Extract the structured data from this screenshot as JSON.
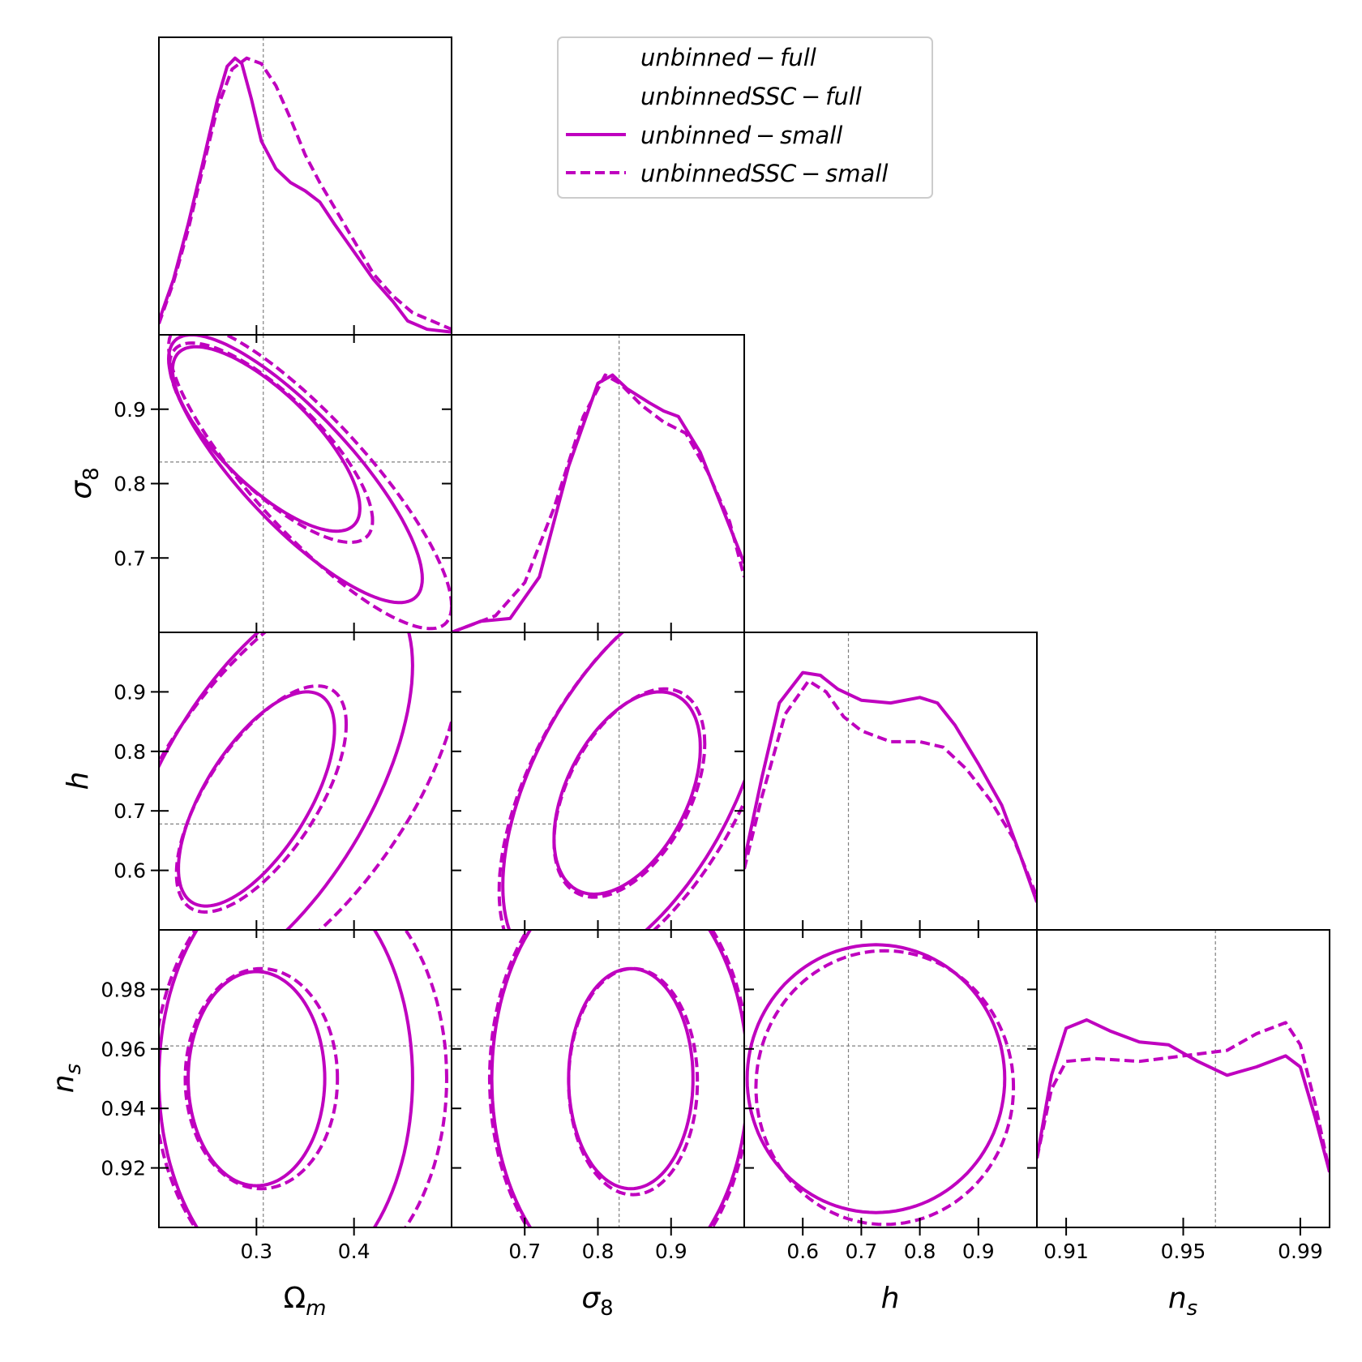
{
  "chart_data": {
    "type": "corner",
    "parameters": [
      {
        "name": "Omega_m",
        "range": [
          0.2,
          0.5
        ],
        "ticks": [
          0.3,
          0.4
        ],
        "tick_labels": [
          "0.3",
          "0.4"
        ],
        "fiducial": 0.307
      },
      {
        "name": "sigma_8",
        "range": [
          0.6,
          1.0
        ],
        "ticks": [
          0.7,
          0.8,
          0.9
        ],
        "tick_labels": [
          "0.7",
          "0.8",
          "0.9"
        ],
        "fiducial": 0.829
      },
      {
        "name": "h",
        "range": [
          0.5,
          1.0
        ],
        "ticks": [
          0.6,
          0.7,
          0.8,
          0.9
        ],
        "tick_labels": [
          "0.6",
          "0.7",
          "0.8",
          "0.9"
        ],
        "fiducial": 0.678
      },
      {
        "name": "n_s",
        "range": [
          0.9,
          1.0
        ],
        "ticks": [
          0.92,
          0.94,
          0.96,
          0.98
        ],
        "tick_labels": [
          "0.92",
          "0.94",
          "0.96",
          "0.98"
        ],
        "x_ticks": [
          0.91,
          0.95,
          0.99
        ],
        "x_tick_labels": [
          "0.91",
          "0.95",
          "0.99"
        ],
        "fiducial": 0.961
      }
    ],
    "legend": {
      "placement": "top-center",
      "entries": [
        {
          "label": "unbinned − full",
          "style": "none"
        },
        {
          "label": "unbinnedSSC − full",
          "style": "none"
        },
        {
          "label": "unbinned − small",
          "style": "solid"
        },
        {
          "label": "unbinnedSSC − small",
          "style": "dashed"
        }
      ]
    },
    "series": [
      {
        "name": "unbinned − small",
        "style": "solid",
        "color": "#bf00bf"
      },
      {
        "name": "unbinnedSSC − small",
        "style": "dashed",
        "color": "#bf00bf"
      }
    ],
    "marginals": [
      {
        "param": "Omega_m",
        "solid": [
          [
            0.2,
            0.05
          ],
          [
            0.215,
            0.2
          ],
          [
            0.23,
            0.4
          ],
          [
            0.245,
            0.62
          ],
          [
            0.26,
            0.85
          ],
          [
            0.27,
            0.97
          ],
          [
            0.278,
            1.0
          ],
          [
            0.285,
            0.98
          ],
          [
            0.295,
            0.85
          ],
          [
            0.305,
            0.7
          ],
          [
            0.32,
            0.6
          ],
          [
            0.335,
            0.55
          ],
          [
            0.35,
            0.52
          ],
          [
            0.365,
            0.48
          ],
          [
            0.38,
            0.4
          ],
          [
            0.4,
            0.3
          ],
          [
            0.42,
            0.2
          ],
          [
            0.44,
            0.12
          ],
          [
            0.455,
            0.05
          ],
          [
            0.475,
            0.02
          ],
          [
            0.5,
            0.01
          ]
        ],
        "dashed": [
          [
            0.2,
            0.04
          ],
          [
            0.215,
            0.19
          ],
          [
            0.23,
            0.38
          ],
          [
            0.245,
            0.6
          ],
          [
            0.26,
            0.82
          ],
          [
            0.275,
            0.96
          ],
          [
            0.29,
            1.0
          ],
          [
            0.305,
            0.98
          ],
          [
            0.32,
            0.9
          ],
          [
            0.335,
            0.78
          ],
          [
            0.35,
            0.65
          ],
          [
            0.365,
            0.55
          ],
          [
            0.38,
            0.46
          ],
          [
            0.4,
            0.34
          ],
          [
            0.42,
            0.22
          ],
          [
            0.44,
            0.14
          ],
          [
            0.46,
            0.08
          ],
          [
            0.48,
            0.05
          ],
          [
            0.5,
            0.02
          ]
        ]
      },
      {
        "param": "sigma_8",
        "solid": [
          [
            0.6,
            0.0
          ],
          [
            0.64,
            0.04
          ],
          [
            0.68,
            0.05
          ],
          [
            0.72,
            0.2
          ],
          [
            0.76,
            0.6
          ],
          [
            0.8,
            0.9
          ],
          [
            0.82,
            0.93
          ],
          [
            0.84,
            0.88
          ],
          [
            0.87,
            0.83
          ],
          [
            0.89,
            0.8
          ],
          [
            0.91,
            0.78
          ],
          [
            0.94,
            0.65
          ],
          [
            0.97,
            0.45
          ],
          [
            1.0,
            0.25
          ]
        ],
        "dashed": [
          [
            0.6,
            0.0
          ],
          [
            0.63,
            0.03
          ],
          [
            0.66,
            0.06
          ],
          [
            0.7,
            0.18
          ],
          [
            0.74,
            0.45
          ],
          [
            0.78,
            0.78
          ],
          [
            0.81,
            0.93
          ],
          [
            0.83,
            0.9
          ],
          [
            0.86,
            0.82
          ],
          [
            0.89,
            0.76
          ],
          [
            0.92,
            0.72
          ],
          [
            0.95,
            0.58
          ],
          [
            0.98,
            0.4
          ],
          [
            1.0,
            0.2
          ]
        ]
      },
      {
        "param": "h",
        "solid": [
          [
            0.5,
            0.25
          ],
          [
            0.53,
            0.55
          ],
          [
            0.56,
            0.82
          ],
          [
            0.6,
            0.93
          ],
          [
            0.63,
            0.92
          ],
          [
            0.66,
            0.87
          ],
          [
            0.7,
            0.83
          ],
          [
            0.75,
            0.82
          ],
          [
            0.8,
            0.84
          ],
          [
            0.83,
            0.82
          ],
          [
            0.86,
            0.74
          ],
          [
            0.9,
            0.6
          ],
          [
            0.94,
            0.45
          ],
          [
            0.97,
            0.28
          ],
          [
            1.0,
            0.1
          ]
        ],
        "dashed": [
          [
            0.5,
            0.22
          ],
          [
            0.53,
            0.48
          ],
          [
            0.57,
            0.78
          ],
          [
            0.61,
            0.9
          ],
          [
            0.64,
            0.86
          ],
          [
            0.67,
            0.77
          ],
          [
            0.7,
            0.72
          ],
          [
            0.75,
            0.68
          ],
          [
            0.8,
            0.68
          ],
          [
            0.84,
            0.66
          ],
          [
            0.88,
            0.58
          ],
          [
            0.92,
            0.47
          ],
          [
            0.96,
            0.33
          ],
          [
            1.0,
            0.12
          ]
        ]
      },
      {
        "param": "n_s",
        "solid": [
          [
            0.9,
            0.25
          ],
          [
            0.905,
            0.55
          ],
          [
            0.91,
            0.72
          ],
          [
            0.917,
            0.75
          ],
          [
            0.925,
            0.71
          ],
          [
            0.935,
            0.67
          ],
          [
            0.945,
            0.66
          ],
          [
            0.955,
            0.6
          ],
          [
            0.965,
            0.55
          ],
          [
            0.975,
            0.58
          ],
          [
            0.985,
            0.62
          ],
          [
            0.99,
            0.58
          ],
          [
            0.995,
            0.4
          ],
          [
            1.0,
            0.2
          ]
        ],
        "dashed": [
          [
            0.9,
            0.25
          ],
          [
            0.905,
            0.5
          ],
          [
            0.91,
            0.6
          ],
          [
            0.92,
            0.61
          ],
          [
            0.935,
            0.6
          ],
          [
            0.95,
            0.62
          ],
          [
            0.965,
            0.64
          ],
          [
            0.975,
            0.7
          ],
          [
            0.985,
            0.74
          ],
          [
            0.99,
            0.66
          ],
          [
            0.995,
            0.45
          ],
          [
            1.0,
            0.2
          ]
        ]
      }
    ],
    "contours": [
      {
        "x": "Omega_m",
        "y": "sigma_8",
        "solid_68": {
          "cx": 0.31,
          "cy": 0.86,
          "sx": 0.096,
          "sy": 0.124,
          "rho": -0.75
        },
        "dashed_68": {
          "cx": 0.315,
          "cy": 0.855,
          "sx": 0.104,
          "sy": 0.134,
          "rho": -0.78
        },
        "solid_95": {
          "cx": 0.34,
          "cy": 0.82,
          "sx": 0.13,
          "sy": 0.18,
          "rho": -0.82
        },
        "dashed_95": {
          "cx": 0.355,
          "cy": 0.81,
          "sx": 0.145,
          "sy": 0.205,
          "rho": -0.85
        }
      },
      {
        "x": "Omega_m",
        "y": "h",
        "solid_68": {
          "cx": 0.3,
          "cy": 0.72,
          "sx": 0.08,
          "sy": 0.18,
          "rho": 0.65
        },
        "dashed_68": {
          "cx": 0.305,
          "cy": 0.72,
          "sx": 0.087,
          "sy": 0.19,
          "rho": 0.66
        },
        "solid_95": {
          "cx": 0.31,
          "cy": 0.74,
          "sx": 0.15,
          "sy": 0.34,
          "rho": 0.6
        },
        "dashed_95": {
          "cx": 0.33,
          "cy": 0.74,
          "sx": 0.18,
          "sy": 0.36,
          "rho": 0.6
        }
      },
      {
        "x": "sigma_8",
        "y": "h",
        "solid_68": {
          "cx": 0.84,
          "cy": 0.73,
          "sx": 0.1,
          "sy": 0.17,
          "rho": 0.45
        },
        "dashed_68": {
          "cx": 0.843,
          "cy": 0.73,
          "sx": 0.103,
          "sy": 0.175,
          "rho": 0.47
        },
        "solid_95": {
          "cx": 0.85,
          "cy": 0.75,
          "sx": 0.18,
          "sy": 0.32,
          "rho": 0.55
        },
        "dashed_95": {
          "cx": 0.855,
          "cy": 0.75,
          "sx": 0.19,
          "sy": 0.33,
          "rho": 0.56
        }
      },
      {
        "x": "Omega_m",
        "y": "n_s",
        "solid_68": {
          "cx": 0.3,
          "cy": 0.95,
          "sx": 0.07,
          "sy": 0.036,
          "rho": 0.0
        },
        "dashed_68": {
          "cx": 0.305,
          "cy": 0.95,
          "sx": 0.078,
          "sy": 0.037,
          "rho": 0.0
        },
        "solid_95": {
          "cx": 0.33,
          "cy": 0.95,
          "sx": 0.13,
          "sy": 0.07,
          "rho": 0.0
        },
        "dashed_95": {
          "cx": 0.345,
          "cy": 0.95,
          "sx": 0.15,
          "sy": 0.072,
          "rho": 0.0
        }
      },
      {
        "x": "sigma_8",
        "y": "n_s",
        "solid_68": {
          "cx": 0.845,
          "cy": 0.95,
          "sx": 0.085,
          "sy": 0.037,
          "rho": 0.0
        },
        "dashed_68": {
          "cx": 0.848,
          "cy": 0.949,
          "sx": 0.088,
          "sy": 0.038,
          "rho": 0.0
        },
        "solid_95": {
          "cx": 0.83,
          "cy": 0.95,
          "sx": 0.175,
          "sy": 0.07,
          "rho": 0.0
        },
        "dashed_95": {
          "cx": 0.83,
          "cy": 0.95,
          "sx": 0.178,
          "sy": 0.071,
          "rho": 0.0
        }
      },
      {
        "x": "h",
        "y": "n_s",
        "solid_68": {
          "cx": 0.725,
          "cy": 0.95,
          "sx": 0.22,
          "sy": 0.045,
          "rho": 0.0
        },
        "dashed_68": {
          "cx": 0.74,
          "cy": 0.947,
          "sx": 0.22,
          "sy": 0.046,
          "rho": 0.0
        }
      }
    ]
  }
}
